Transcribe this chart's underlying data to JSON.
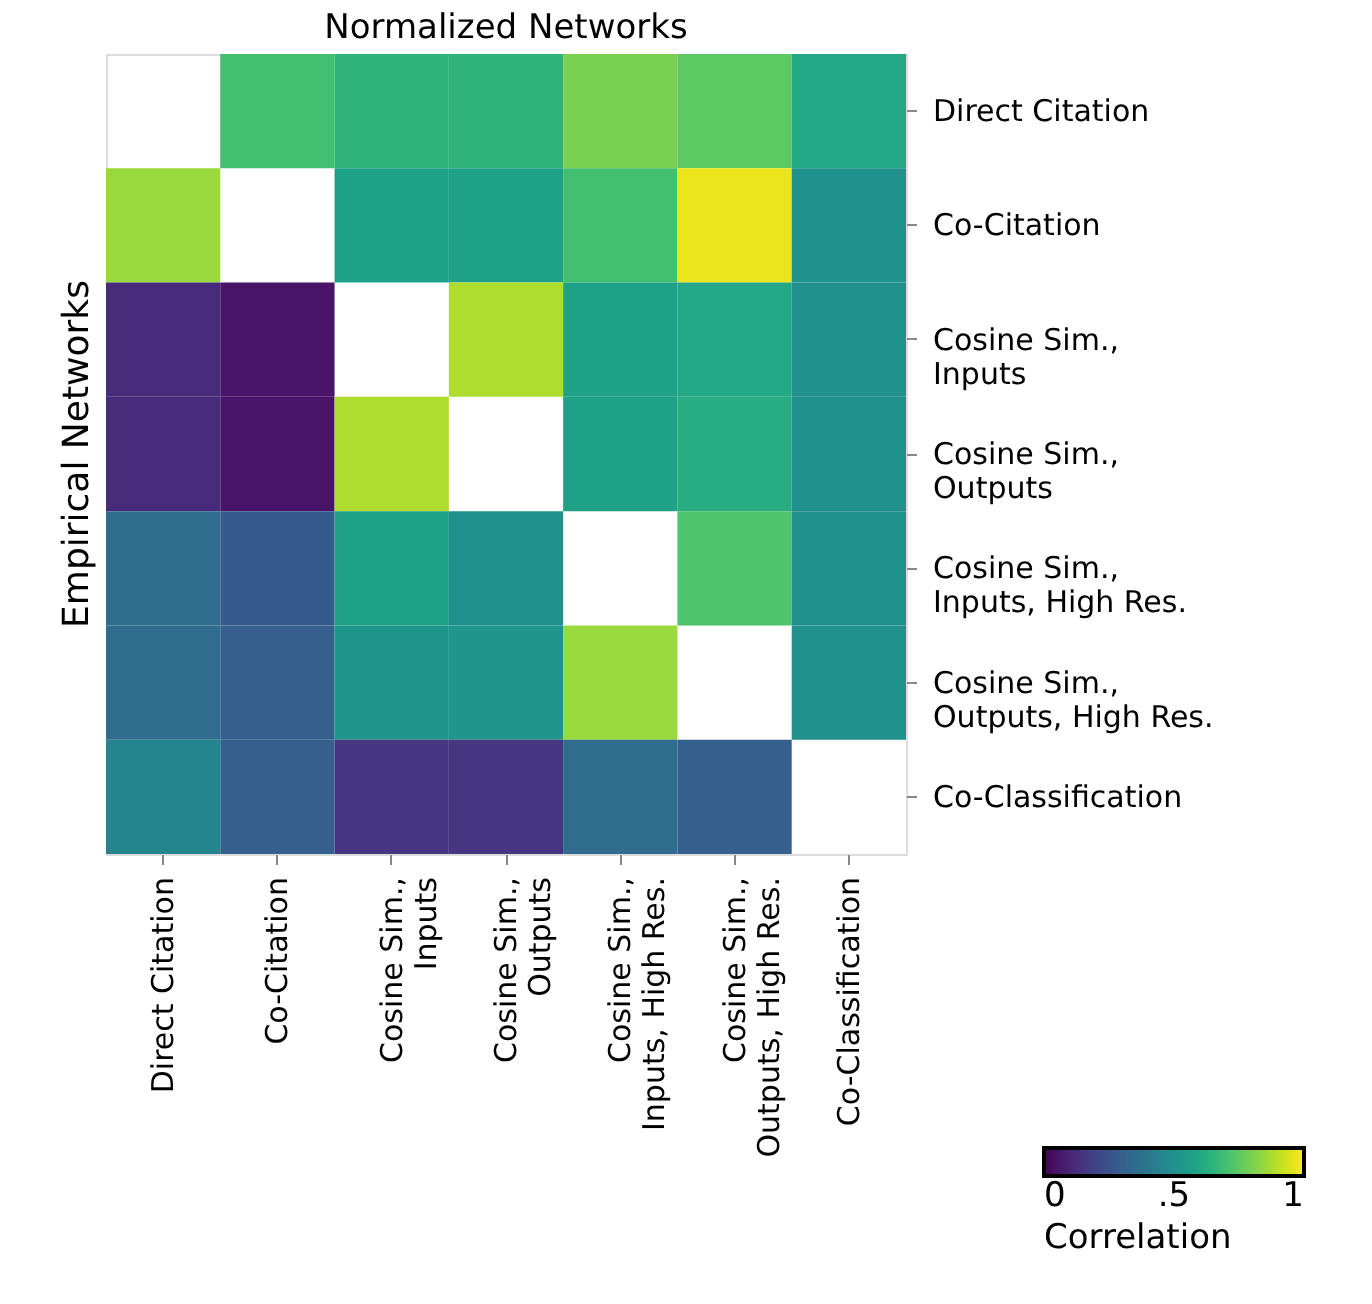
{
  "chart_data": {
    "type": "heatmap",
    "title": "Normalized Networks",
    "ylabel": "Empirical Networks",
    "clabel": "Correlation",
    "categories": [
      "Direct Citation",
      "Co-Citation",
      "Cosine Sim., Inputs",
      "Cosine Sim., Outputs",
      "Cosine Sim., Inputs, High Res.",
      "Cosine Sim., Outputs, High Res.",
      "Co-Classification"
    ],
    "y_categories": [
      "Direct Citation",
      "Co-Citation",
      "Cosine Sim., Inputs",
      "Cosine Sim., Outputs",
      "Cosine Sim., Inputs, High Res.",
      "Cosine Sim., Outputs, High Res.",
      "Co-Classification"
    ],
    "cells": [
      [
        null,
        0.7,
        0.65,
        0.65,
        0.8,
        0.75,
        0.6
      ],
      [
        0.85,
        null,
        0.57,
        0.57,
        0.7,
        0.97,
        0.5
      ],
      [
        0.12,
        0.05,
        null,
        0.88,
        0.57,
        0.6,
        0.5
      ],
      [
        0.12,
        0.05,
        0.88,
        null,
        0.57,
        0.62,
        0.5
      ],
      [
        0.35,
        0.28,
        0.57,
        0.5,
        null,
        0.72,
        0.5
      ],
      [
        0.35,
        0.3,
        0.52,
        0.52,
        0.85,
        null,
        0.5
      ],
      [
        0.45,
        0.3,
        0.15,
        0.15,
        0.35,
        0.3,
        null
      ]
    ],
    "clim": [
      0,
      1
    ],
    "cticks": [
      0,
      {
        "value": 0.5,
        "label": ".5"
      },
      1
    ]
  }
}
